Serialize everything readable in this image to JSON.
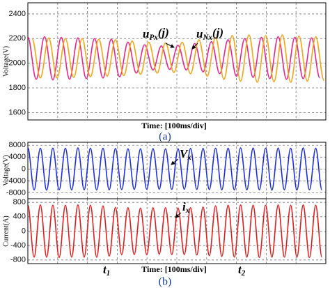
{
  "chart_data": [
    {
      "type": "line",
      "ylabel": "Voltage(V)",
      "xlabel": "Time: [100ms/div]",
      "caption": "(a)",
      "xlim": [
        0,
        1000
      ],
      "xticks": [
        0,
        100,
        200,
        300,
        400,
        500,
        600,
        700,
        800,
        900,
        1000
      ],
      "ylim": [
        1540,
        2490
      ],
      "yticks": [
        1600,
        1800,
        2000,
        2200,
        2400
      ],
      "grid": true,
      "annotations": [
        [
          "u",
          "Px",
          "(j)"
        ],
        [
          "u",
          "Nx",
          "(j)"
        ]
      ],
      "series": [
        {
          "color": "#e8268a",
          "x": [
            0,
            28,
            56,
            84,
            112,
            140,
            168,
            196,
            224,
            252,
            280,
            308,
            336,
            364,
            392,
            420,
            448,
            476,
            504,
            532,
            560,
            588,
            616,
            644,
            672,
            700,
            728,
            756,
            784,
            812,
            840,
            868,
            896,
            924,
            952,
            980
          ],
          "values": [
            2210,
            1870,
            2215,
            1865,
            2210,
            1870,
            2205,
            1875,
            2200,
            1880,
            2195,
            1890,
            2170,
            1920,
            2150,
            1945,
            2140,
            1950,
            2145,
            1945,
            2160,
            1930,
            2175,
            1915,
            2190,
            1895,
            2200,
            1885,
            2210,
            1875,
            2215,
            1870,
            2210,
            1875,
            2205,
            1880
          ]
        },
        {
          "color": "#f2a516",
          "x": [
            14,
            42,
            70,
            98,
            126,
            154,
            182,
            210,
            238,
            266,
            294,
            322,
            350,
            378,
            406,
            434,
            462,
            490,
            518,
            546,
            574,
            602,
            630,
            658,
            686,
            714,
            742,
            770,
            798,
            826,
            854,
            882,
            910,
            938,
            966,
            994
          ],
          "values": [
            2200,
            1880,
            2205,
            1880,
            2200,
            1885,
            2200,
            1890,
            2195,
            1895,
            2190,
            1900,
            2180,
            1910,
            2170,
            1920,
            2165,
            1925,
            2170,
            1915,
            2190,
            1895,
            2210,
            1870,
            2225,
            1855,
            2230,
            1845,
            2225,
            1850,
            2230,
            1845,
            2220,
            1855,
            2215,
            1860
          ]
        }
      ]
    },
    {
      "type": "line",
      "ylabel": "Voltage(V)",
      "xlim": [
        0,
        1000
      ],
      "xticks": [
        0,
        100,
        200,
        300,
        400,
        500,
        600,
        700,
        800,
        900,
        1000
      ],
      "ylim": [
        -10000,
        9000
      ],
      "yticks": [
        8000,
        4000,
        0,
        -4000,
        -8000
      ],
      "grid": true,
      "annotations": [
        [
          "V",
          "x"
        ]
      ],
      "series": [
        {
          "color": "#1f2ee0",
          "x": [
            0,
            21,
            42,
            63,
            84,
            105,
            126,
            147,
            168,
            189,
            210,
            231,
            252,
            273,
            294,
            315,
            336,
            357,
            378,
            399,
            420,
            441,
            462,
            483,
            504,
            525,
            546,
            567,
            588,
            609,
            630,
            651,
            672,
            693,
            714,
            735,
            756,
            777,
            798,
            819,
            840,
            861,
            882,
            903,
            924,
            945,
            966,
            987
          ],
          "values": [
            7100,
            -7000,
            7000,
            -7100,
            7050,
            -7000,
            7000,
            -7050,
            7100,
            -7000,
            7000,
            -7050,
            7000,
            -7000,
            6900,
            -6900,
            6800,
            -6850,
            6800,
            -6800,
            6850,
            -6800,
            6800,
            -6850,
            6800,
            -6800,
            6900,
            -6850,
            6900,
            -6900,
            7000,
            -7000,
            7000,
            -7050,
            7100,
            -7000,
            7050,
            -7000,
            7000,
            -7100,
            7050,
            -7000,
            7000,
            -7050,
            7100,
            -7000,
            7000,
            -7050
          ]
        }
      ]
    },
    {
      "type": "line",
      "ylabel": "Current(A)",
      "xlabel": "Time: [100ms/div]",
      "caption": "(b)",
      "xlim": [
        0,
        1000
      ],
      "xticks": [
        0,
        100,
        200,
        300,
        400,
        500,
        600,
        700,
        800,
        900,
        1000
      ],
      "ylim": [
        -900,
        900
      ],
      "yticks": [
        800,
        400,
        0,
        -400,
        -800
      ],
      "grid": true,
      "annotations": [
        [
          "i",
          "x"
        ],
        [
          "t",
          "1"
        ],
        [
          "t",
          "2"
        ]
      ],
      "series": [
        {
          "color": "#e21b1b",
          "x": [
            0,
            21,
            42,
            63,
            84,
            105,
            126,
            147,
            168,
            189,
            210,
            231,
            252,
            273,
            294,
            315,
            336,
            357,
            378,
            399,
            420,
            441,
            462,
            483,
            504,
            525,
            546,
            567,
            588,
            609,
            630,
            651,
            672,
            693,
            714,
            735,
            756,
            777,
            798,
            819,
            840,
            861,
            882,
            903,
            924,
            945,
            966,
            987
          ],
          "values": [
            720,
            -720,
            730,
            -720,
            720,
            -730,
            720,
            -720,
            730,
            -720,
            720,
            -720,
            700,
            -690,
            660,
            -650,
            650,
            -650,
            640,
            -650,
            650,
            -640,
            650,
            -650,
            640,
            -650,
            650,
            -660,
            670,
            -680,
            700,
            -700,
            720,
            -720,
            730,
            -720,
            720,
            -730,
            720,
            -720,
            730,
            -720,
            720,
            -720,
            730,
            -730,
            720,
            -720
          ]
        }
      ]
    }
  ]
}
